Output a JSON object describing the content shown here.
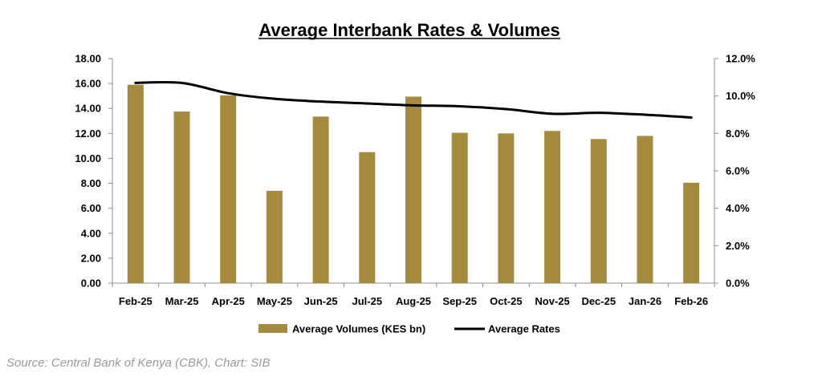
{
  "chart_data": {
    "type": "bar+line",
    "title": "Average Interbank Rates & Volumes",
    "categories": [
      "Feb-25",
      "Mar-25",
      "Apr-25",
      "May-25",
      "Jun-25",
      "Jul-25",
      "Aug-25",
      "Sep-25",
      "Oct-25",
      "Nov-25",
      "Dec-25",
      "Jan-26",
      "Feb-26"
    ],
    "series": [
      {
        "name": "Average Volumes (KES bn)",
        "type": "bar",
        "axis": "left",
        "color": "#A68A3E",
        "values": [
          15.9,
          13.75,
          15.05,
          7.4,
          13.35,
          10.5,
          14.95,
          12.05,
          12.0,
          12.2,
          11.55,
          11.8,
          8.05
        ]
      },
      {
        "name": "Average Rates",
        "type": "line",
        "axis": "right",
        "color": "#000000",
        "values": [
          10.7,
          10.7,
          10.15,
          9.85,
          9.7,
          9.6,
          9.5,
          9.45,
          9.3,
          9.05,
          9.1,
          9.0,
          8.85
        ]
      }
    ],
    "y_left": {
      "min": 0,
      "max": 18,
      "step": 2,
      "tick_labels": [
        "0.00",
        "2.00",
        "4.00",
        "6.00",
        "8.00",
        "10.00",
        "12.00",
        "14.00",
        "16.00",
        "18.00"
      ]
    },
    "y_right": {
      "min": 0,
      "max": 12,
      "step": 2,
      "tick_labels": [
        "0.0%",
        "2.0%",
        "4.0%",
        "6.0%",
        "8.0%",
        "10.0%",
        "12.0%"
      ]
    },
    "legend_position": "bottom"
  },
  "source_text": "Source: Central Bank of Kenya (CBK), Chart: SIB"
}
